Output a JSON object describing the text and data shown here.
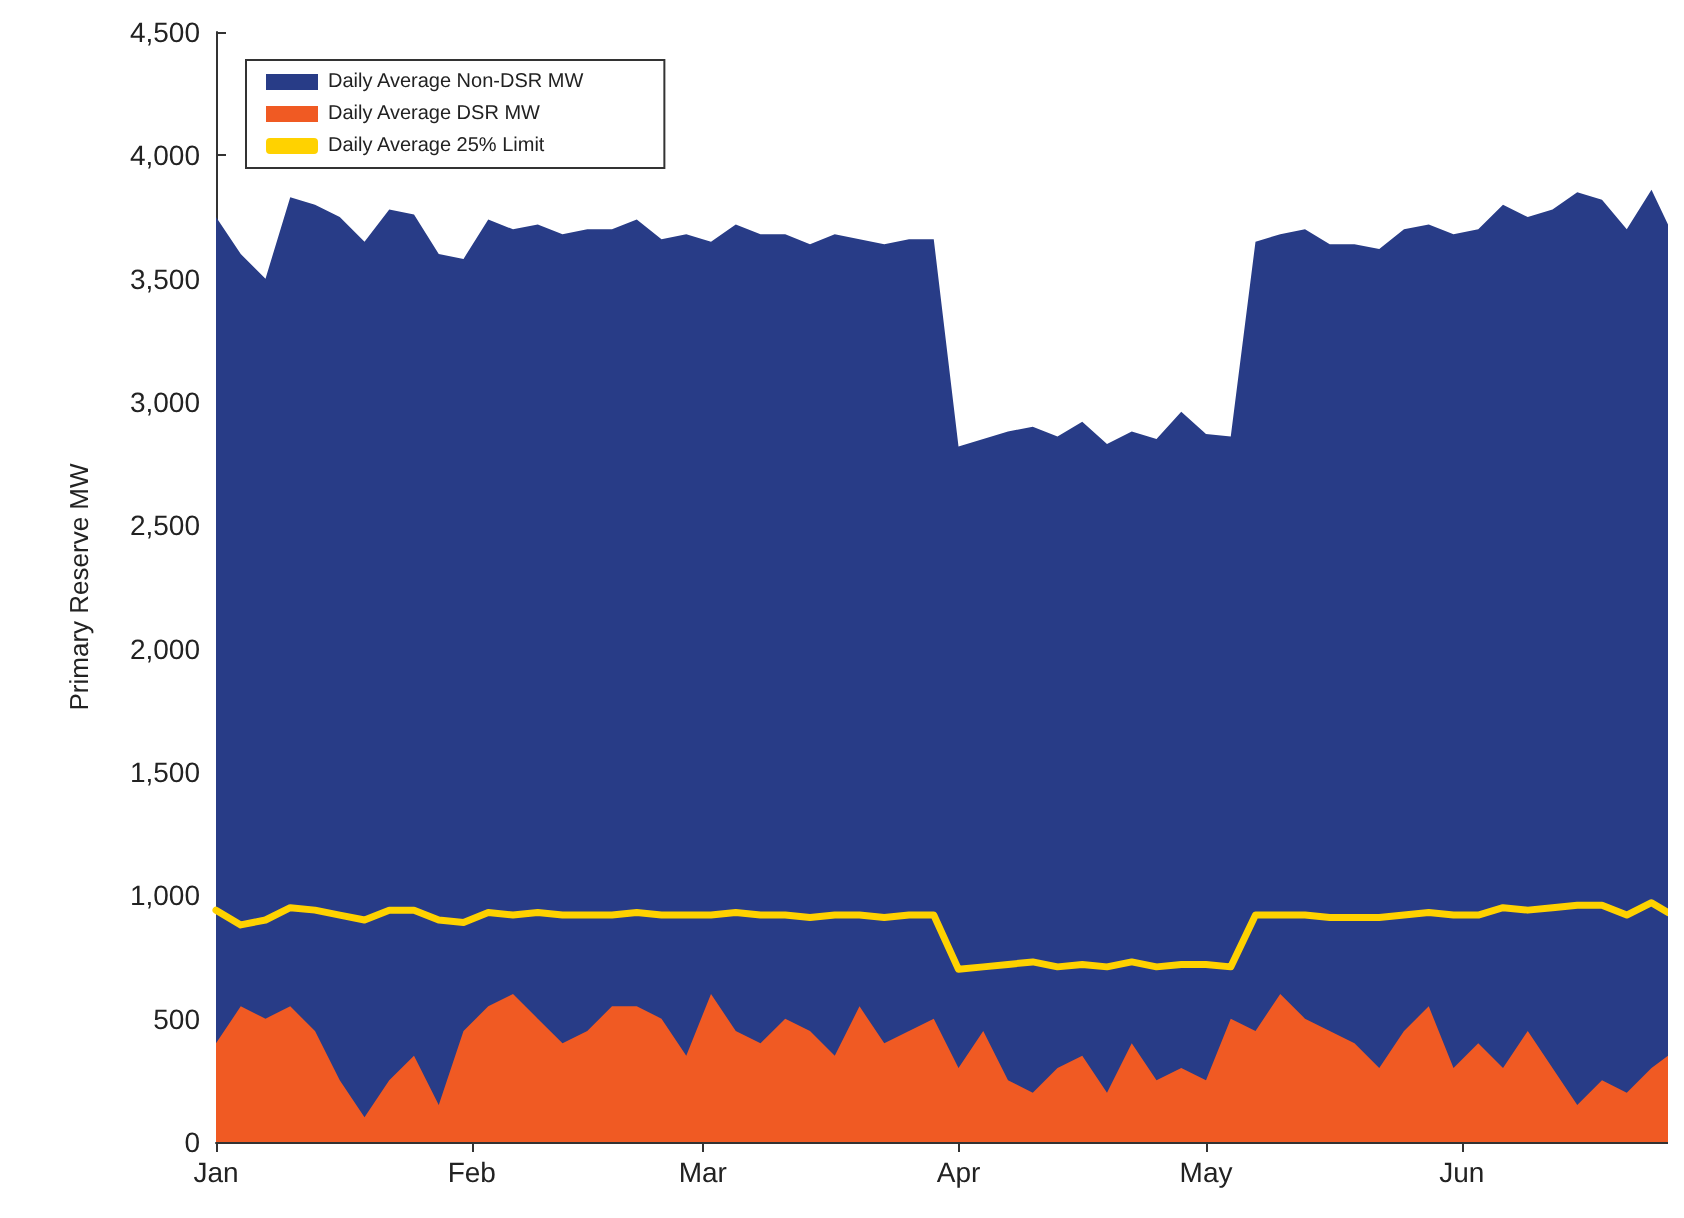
{
  "chart_data": {
    "type": "area",
    "ylabel": "Primary Reserve MW",
    "stacked": true,
    "grid": false,
    "legend": "top left",
    "marker": "none",
    "x": [
      "--01-01",
      "--01-04",
      "--01-07",
      "--01-10",
      "--01-13",
      "--01-16",
      "--01-19",
      "--01-22",
      "--01-25",
      "--01-28",
      "--01-31",
      "--02-03",
      "--02-06",
      "--02-09",
      "--02-12",
      "--02-15",
      "--02-18",
      "--02-21",
      "--02-24",
      "--02-27",
      "--03-02",
      "--03-05",
      "--03-08",
      "--03-11",
      "--03-14",
      "--03-17",
      "--03-20",
      "--03-23",
      "--03-26",
      "--03-29",
      "--04-01",
      "--04-04",
      "--04-07",
      "--04-10",
      "--04-13",
      "--04-16",
      "--04-19",
      "--04-22",
      "--04-25",
      "--04-28",
      "--05-01",
      "--05-04",
      "--05-07",
      "--05-10",
      "--05-13",
      "--05-16",
      "--05-19",
      "--05-22",
      "--05-25",
      "--05-28",
      "--05-31",
      "--06-03",
      "--06-06",
      "--06-09",
      "--06-12",
      "--06-15",
      "--06-18",
      "--06-21",
      "--06-24",
      "--06-26"
    ],
    "xlim": [
      "--01-01",
      "--06-26"
    ],
    "xticks": [
      {
        "value": "--01-01",
        "label": "Jan"
      },
      {
        "value": "--02-01",
        "label": "Feb"
      },
      {
        "value": "--03-01",
        "label": "Mar"
      },
      {
        "value": "--04-01",
        "label": "Apr"
      },
      {
        "value": "--05-01",
        "label": "May"
      },
      {
        "value": "--06-01",
        "label": "Jun"
      }
    ],
    "ylim": [
      0,
      4500
    ],
    "yticks": [
      0,
      500,
      {
        "value": 1000,
        "label": "1,000"
      },
      {
        "value": 1500,
        "label": "1,500"
      },
      {
        "value": 2000,
        "label": "2,000"
      },
      {
        "value": 2500,
        "label": "2,500"
      },
      {
        "value": 3000,
        "label": "3,000"
      },
      {
        "value": 3500,
        "label": "3,500"
      },
      {
        "value": 4000,
        "label": "4,000"
      },
      {
        "value": 4500,
        "label": "4,500"
      }
    ],
    "series": [
      {
        "name": "Daily Average DSR MW",
        "type": "area",
        "color": "#f05a23",
        "values": [
          400,
          550,
          500,
          550,
          450,
          250,
          100,
          250,
          350,
          150,
          450,
          550,
          600,
          500,
          400,
          450,
          550,
          550,
          500,
          350,
          600,
          450,
          400,
          500,
          450,
          350,
          550,
          400,
          450,
          500,
          300,
          450,
          250,
          200,
          300,
          350,
          200,
          400,
          250,
          300,
          250,
          500,
          450,
          600,
          500,
          450,
          400,
          300,
          450,
          550,
          300,
          400,
          300,
          450,
          300,
          150,
          250,
          200,
          300,
          350
        ]
      },
      {
        "name": "Daily Average Non-DSR MW",
        "type": "area",
        "color": "#283c87",
        "values": [
          3350,
          3050,
          3000,
          3280,
          3350,
          3500,
          3550,
          3530,
          3410,
          3450,
          3130,
          3190,
          3100,
          3220,
          3280,
          3250,
          3150,
          3190,
          3160,
          3330,
          3050,
          3270,
          3280,
          3180,
          3190,
          3330,
          3110,
          3240,
          3210,
          3160,
          2520,
          2400,
          2630,
          2700,
          2560,
          2570,
          2630,
          2480,
          2600,
          2660,
          2620,
          2360,
          3200,
          3080,
          3200,
          3190,
          3240,
          3320,
          3250,
          3170,
          3380,
          3300,
          3500,
          3300,
          3480,
          3700,
          3570,
          3500,
          3560,
          3370
        ]
      },
      {
        "name": "Daily Average 25% Limit",
        "type": "line",
        "color": "#ffd200",
        "values": [
          940,
          880,
          900,
          950,
          940,
          920,
          900,
          940,
          940,
          900,
          890,
          930,
          920,
          930,
          920,
          920,
          920,
          930,
          920,
          920,
          920,
          930,
          920,
          920,
          910,
          920,
          920,
          910,
          920,
          920,
          700,
          710,
          720,
          730,
          710,
          720,
          710,
          730,
          710,
          720,
          720,
          710,
          920,
          920,
          920,
          910,
          910,
          910,
          920,
          930,
          920,
          920,
          950,
          940,
          950,
          960,
          960,
          920,
          970,
          930
        ]
      }
    ]
  }
}
